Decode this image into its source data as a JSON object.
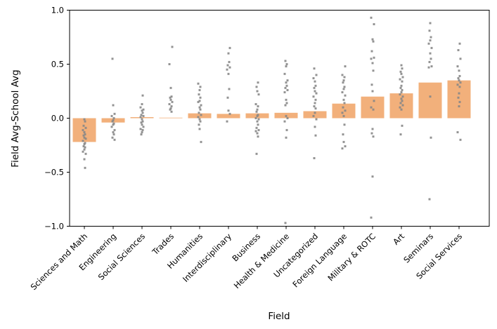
{
  "figure": {
    "background": "#ffffff"
  },
  "chart_data": {
    "type": "bar",
    "overlay": "strip-scatter",
    "title": "",
    "xlabel": "Field",
    "ylabel": "Field Avg-School Avg",
    "ylim": [
      -1.0,
      1.0
    ],
    "yticks": [
      1.0,
      0.5,
      0.0,
      -0.5,
      -1.0
    ],
    "grid": false,
    "legend_position": "none",
    "categories": [
      "Sciences and Math",
      "Engineering",
      "Social Sciences",
      "Trades",
      "Humanities",
      "Interdisciplinary",
      "Business",
      "Health & Medicine",
      "Uncategorized",
      "Foreign Language",
      "Military & ROTC",
      "Art",
      "Seminars",
      "Social Services"
    ],
    "bar_values": [
      -0.22,
      -0.04,
      0.01,
      0.005,
      0.045,
      0.04,
      0.045,
      0.05,
      0.065,
      0.135,
      0.2,
      0.23,
      0.33,
      0.35
    ],
    "point_values": [
      [
        -0.01,
        -0.03,
        -0.07,
        -0.09,
        -0.11,
        -0.13,
        -0.15,
        -0.16,
        -0.18,
        -0.19,
        -0.21,
        -0.23,
        -0.24,
        -0.26,
        -0.27,
        -0.29,
        -0.31,
        -0.33,
        -0.38,
        -0.46
      ],
      [
        0.55,
        0.12,
        0.04,
        0.02,
        0.0,
        -0.02,
        -0.03,
        -0.05,
        -0.06,
        -0.08,
        -0.11,
        -0.13,
        -0.15,
        -0.18,
        -0.2
      ],
      [
        0.21,
        0.13,
        0.1,
        0.08,
        0.07,
        0.05,
        0.03,
        0.02,
        0.01,
        -0.01,
        -0.03,
        -0.04,
        -0.06,
        -0.08,
        -0.1,
        -0.11,
        -0.13,
        -0.15
      ],
      [
        0.66,
        0.5,
        0.28,
        0.2,
        0.19,
        0.17,
        0.15,
        0.13,
        0.11,
        0.09,
        0.08,
        0.06
      ],
      [
        0.32,
        0.29,
        0.26,
        0.22,
        0.19,
        0.16,
        0.15,
        0.12,
        0.1,
        0.08,
        0.05,
        0.03,
        0.01,
        -0.01,
        -0.03,
        -0.06,
        -0.1,
        -0.22
      ],
      [
        0.65,
        0.6,
        0.52,
        0.49,
        0.47,
        0.45,
        0.41,
        0.27,
        0.19,
        0.07,
        0.04,
        -0.03
      ],
      [
        0.33,
        0.29,
        0.25,
        0.22,
        0.13,
        0.11,
        0.08,
        0.06,
        0.03,
        0.02,
        0.0,
        -0.01,
        -0.03,
        -0.06,
        -0.09,
        -0.11,
        -0.12,
        -0.14,
        -0.17,
        -0.33
      ],
      [
        0.53,
        0.5,
        0.48,
        0.41,
        0.35,
        0.33,
        0.3,
        0.28,
        0.26,
        0.24,
        0.17,
        0.14,
        0.12,
        0.02,
        0.0,
        -0.03,
        -0.11,
        -0.18,
        -0.97
      ],
      [
        0.46,
        0.4,
        0.37,
        0.34,
        0.3,
        0.28,
        0.25,
        0.23,
        0.2,
        0.17,
        0.14,
        0.11,
        0.09,
        0.05,
        0.02,
        -0.01,
        -0.08,
        -0.16,
        -0.37
      ],
      [
        0.48,
        0.4,
        0.38,
        0.35,
        0.33,
        0.29,
        0.27,
        0.24,
        0.21,
        0.17,
        0.14,
        0.1,
        0.07,
        0.05,
        0.02,
        -0.06,
        -0.15,
        -0.22,
        -0.26,
        -0.28
      ],
      [
        0.93,
        0.87,
        0.73,
        0.71,
        0.62,
        0.56,
        0.55,
        0.51,
        0.44,
        0.31,
        0.25,
        0.16,
        0.1,
        0.08,
        -0.1,
        -0.14,
        -0.17,
        -0.54,
        -0.92
      ],
      [
        0.49,
        0.46,
        0.43,
        0.41,
        0.38,
        0.36,
        0.34,
        0.3,
        0.28,
        0.26,
        0.24,
        0.22,
        0.2,
        0.18,
        0.16,
        0.14,
        0.12,
        0.1,
        0.08,
        -0.07,
        -0.15
      ],
      [
        0.88,
        0.81,
        0.75,
        0.72,
        0.69,
        0.65,
        0.6,
        0.55,
        0.52,
        0.48,
        0.47,
        0.2,
        -0.18,
        -0.75
      ],
      [
        0.69,
        0.63,
        0.55,
        0.48,
        0.44,
        0.39,
        0.37,
        0.35,
        0.33,
        0.31,
        0.29,
        0.23,
        0.19,
        0.15,
        0.11,
        -0.13,
        -0.2
      ]
    ],
    "colors": {
      "bar": "#F2B07B",
      "points": "#878787",
      "axis": "#000000",
      "background": "#FFFFFF",
      "tick_text": "#000000"
    }
  }
}
